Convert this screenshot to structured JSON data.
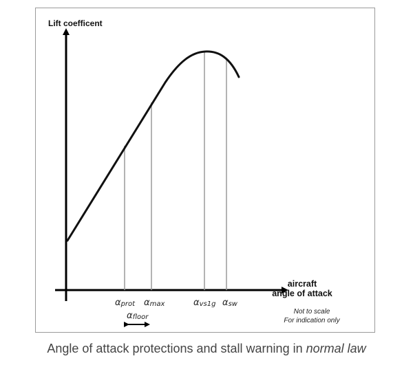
{
  "axes": {
    "y_label": "Lift coefficent",
    "x_label_line1": "aircraft",
    "x_label_line2": "angle of attack"
  },
  "markers": [
    {
      "id": "prot",
      "symbol": "α",
      "subscript": "prot"
    },
    {
      "id": "max",
      "symbol": "α",
      "subscript": "max"
    },
    {
      "id": "vs1g",
      "symbol": "α",
      "subscript": "vs1g"
    },
    {
      "id": "sw",
      "symbol": "α",
      "subscript": "sw"
    }
  ],
  "floor_marker": {
    "symbol": "α",
    "subscript": "floor"
  },
  "note": {
    "line1": "Not to scale",
    "line2": "For indication only"
  },
  "caption": {
    "main": "Angle of attack protections and stall warning in ",
    "emphasis": "normal law"
  },
  "colors": {
    "curve": "#111111",
    "marker_lines": "#9a9a9a",
    "frame": "#9a9a9a",
    "caption_text": "#444444"
  }
}
